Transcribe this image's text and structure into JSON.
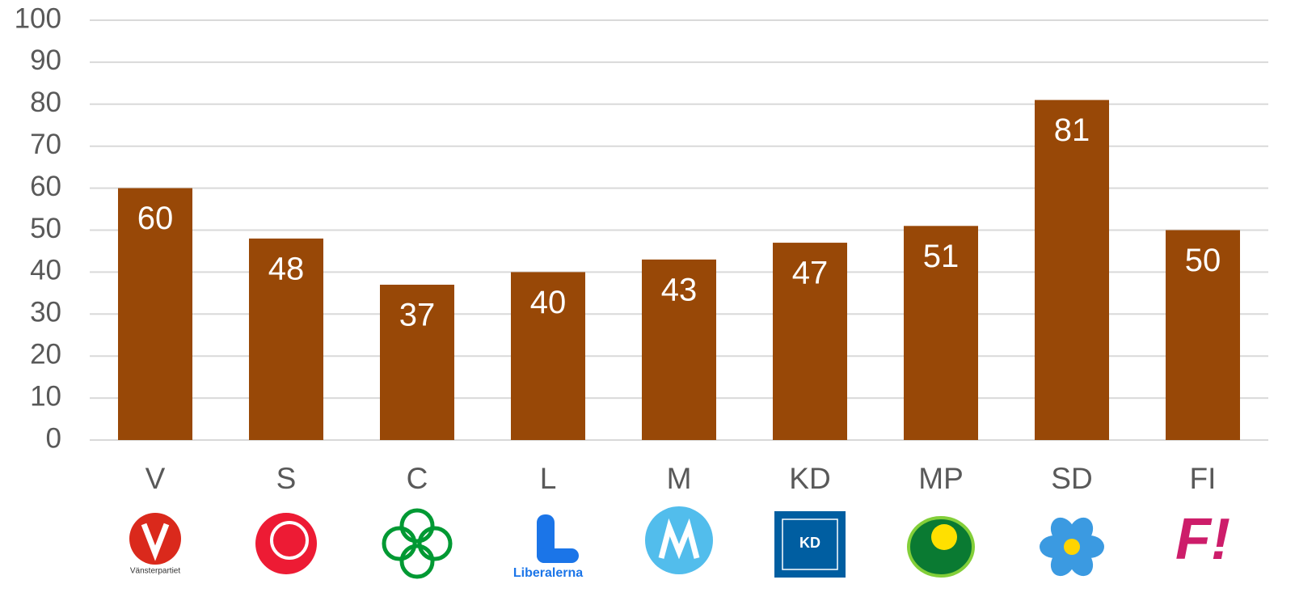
{
  "chart_data": {
    "type": "bar",
    "categories": [
      "V",
      "S",
      "C",
      "L",
      "M",
      "KD",
      "MP",
      "SD",
      "FI"
    ],
    "values": [
      60,
      48,
      37,
      40,
      43,
      47,
      51,
      81,
      50
    ],
    "color": "#984807",
    "ylim": [
      0,
      100
    ],
    "yticks": [
      0,
      10,
      20,
      30,
      40,
      50,
      60,
      70,
      80,
      90,
      100
    ],
    "grid": true,
    "logos": [
      "Vänsterpartiet",
      null,
      null,
      "Liberalerna",
      null,
      "KD",
      null,
      null,
      "F!"
    ]
  }
}
